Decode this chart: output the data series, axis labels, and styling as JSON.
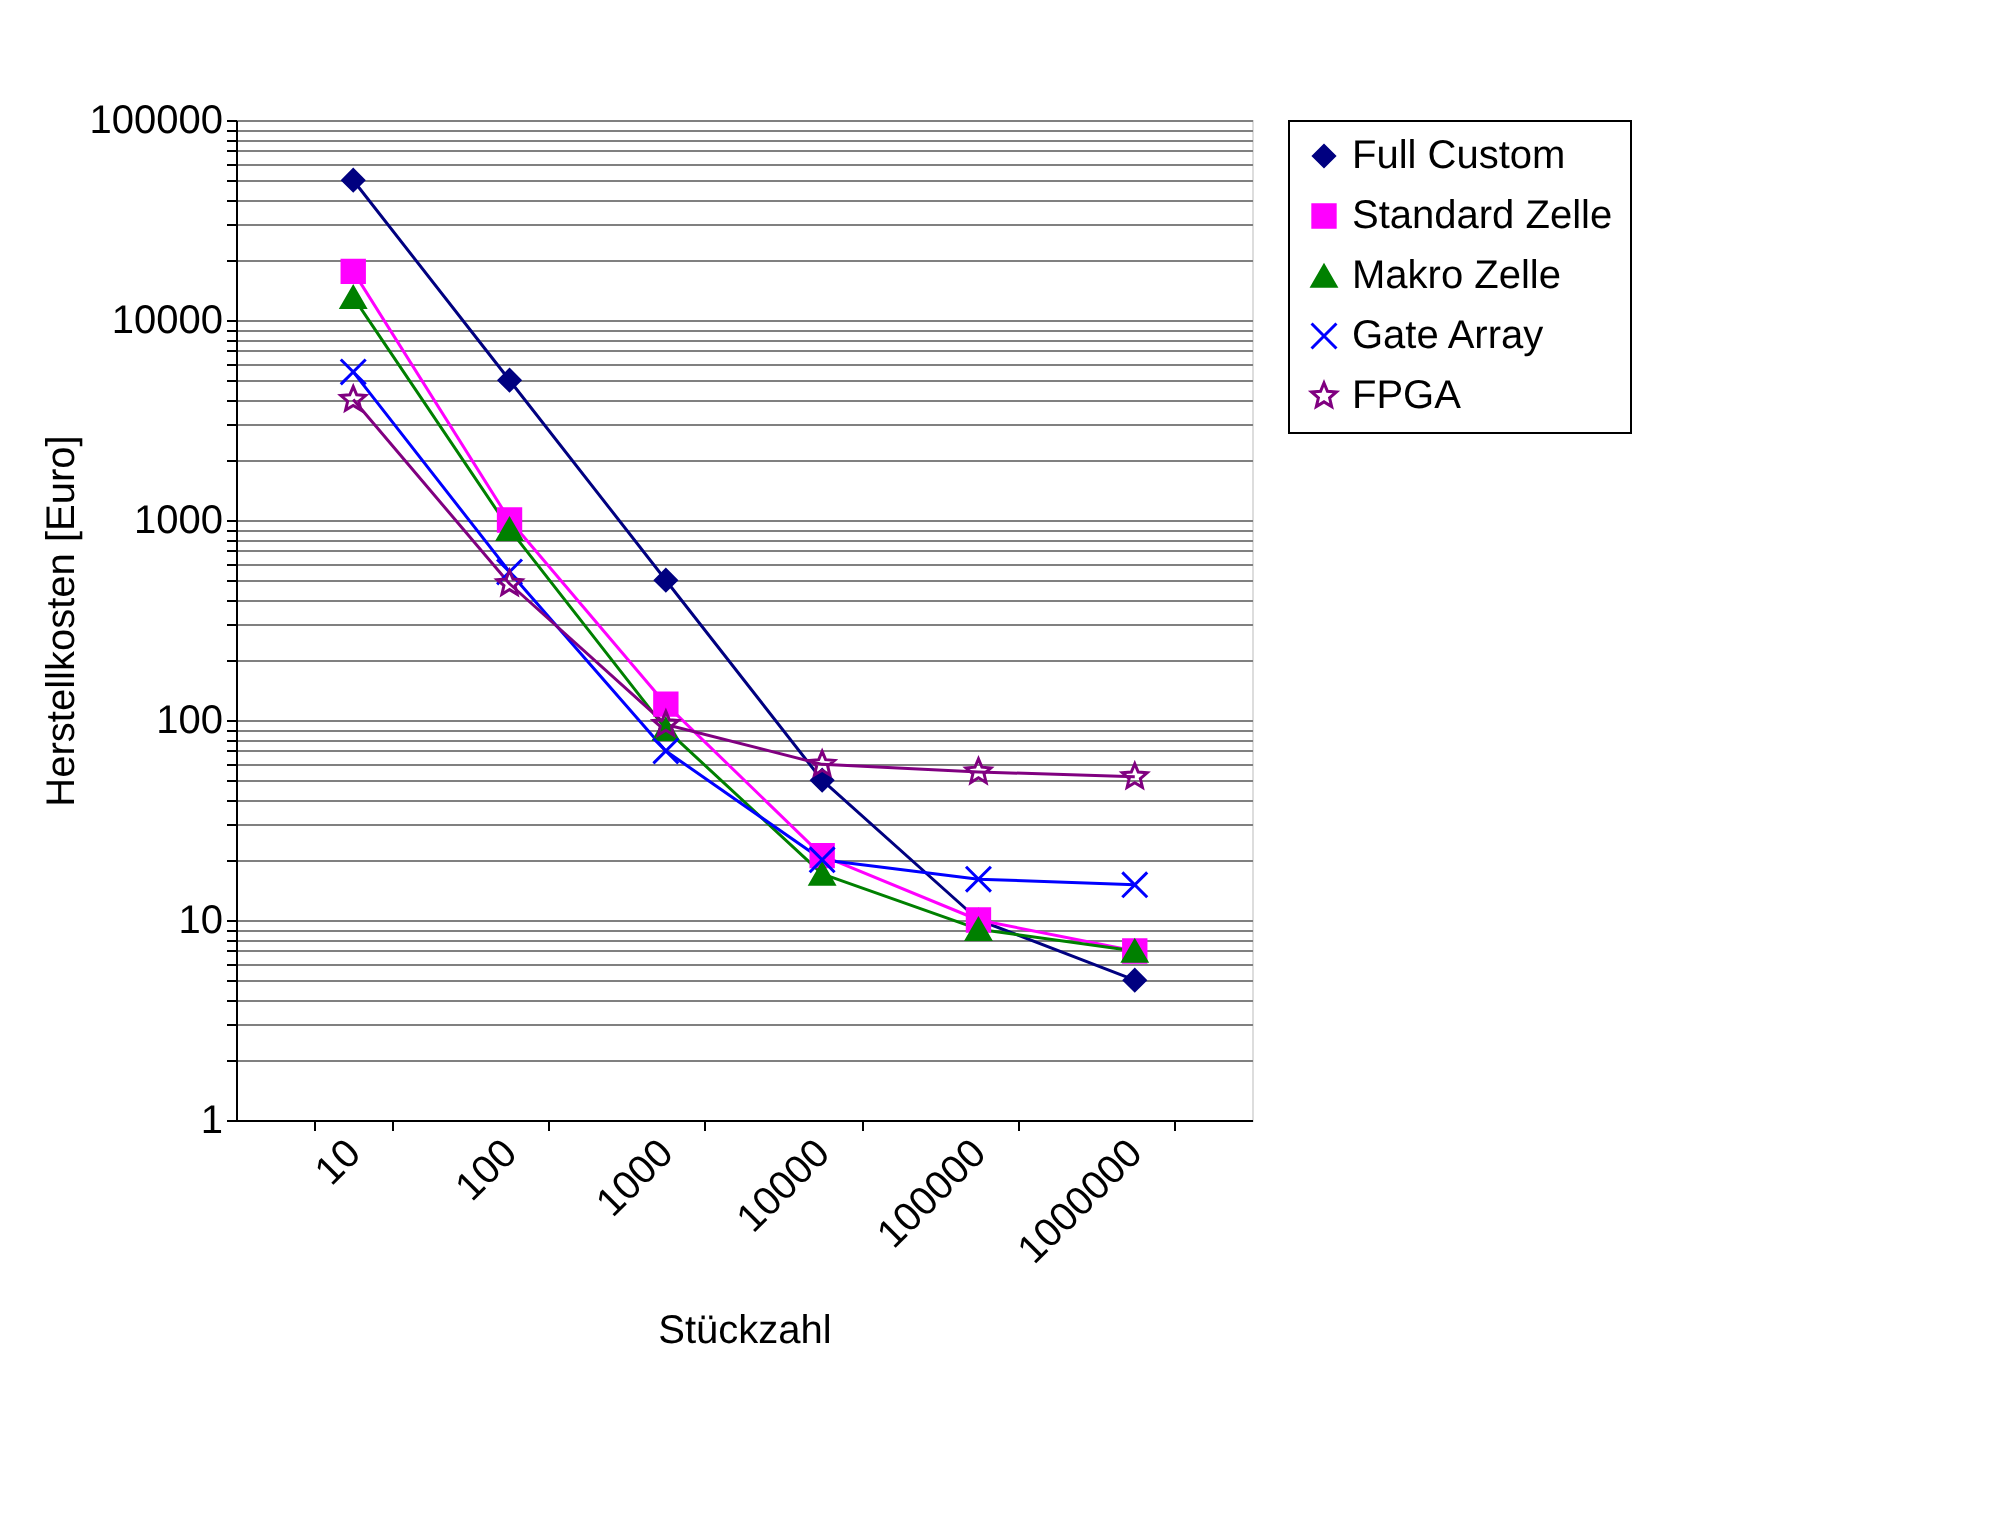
{
  "chart_data": {
    "type": "line",
    "xlabel": "Stückzahl",
    "ylabel": "Herstellkosten [Euro]",
    "categories": [
      "10",
      "100",
      "1000",
      "10000",
      "100000",
      "1000000"
    ],
    "series": [
      {
        "name": "Full Custom",
        "color": "#000080",
        "marker": "diamond",
        "values": [
          50000,
          5000,
          500,
          50,
          10,
          5
        ]
      },
      {
        "name": "Standard Zelle",
        "color": "#ff00ff",
        "marker": "square",
        "values": [
          17500,
          1000,
          120,
          21,
          10,
          7
        ]
      },
      {
        "name": "Makro Zelle",
        "color": "#008000",
        "marker": "triangle",
        "values": [
          13000,
          900,
          90,
          17,
          9,
          7
        ]
      },
      {
        "name": "Gate Array",
        "color": "#0000ff",
        "marker": "cross",
        "values": [
          5500,
          550,
          70,
          20,
          16,
          15
        ]
      },
      {
        "name": "FPGA",
        "color": "#800080",
        "marker": "star",
        "values": [
          4000,
          480,
          95,
          60,
          55,
          52
        ]
      }
    ],
    "log": "y",
    "ylim": [
      1,
      100000
    ],
    "yticks": [
      1,
      {
        "value": 2,
        "label": null
      },
      {
        "value": 3,
        "label": null
      },
      {
        "value": 4,
        "label": null
      },
      {
        "value": 5,
        "label": null
      },
      {
        "value": 6,
        "label": null
      },
      {
        "value": 7,
        "label": null
      },
      {
        "value": 8,
        "label": null
      },
      {
        "value": 9,
        "label": null
      },
      10,
      {
        "value": 20,
        "label": null
      },
      {
        "value": 30,
        "label": null
      },
      {
        "value": 40,
        "label": null
      },
      {
        "value": 50,
        "label": null
      },
      {
        "value": 60,
        "label": null
      },
      {
        "value": 70,
        "label": null
      },
      {
        "value": 80,
        "label": null
      },
      {
        "value": 90,
        "label": null
      },
      100,
      {
        "value": 200,
        "label": null
      },
      {
        "value": 300,
        "label": null
      },
      {
        "value": 400,
        "label": null
      },
      {
        "value": 500,
        "label": null
      },
      {
        "value": 600,
        "label": null
      },
      {
        "value": 700,
        "label": null
      },
      {
        "value": 800,
        "label": null
      },
      {
        "value": 900,
        "label": null
      },
      1000,
      {
        "value": 2000,
        "label": null
      },
      {
        "value": 3000,
        "label": null
      },
      {
        "value": 4000,
        "label": null
      },
      {
        "value": 5000,
        "label": null
      },
      {
        "value": 6000,
        "label": null
      },
      {
        "value": 7000,
        "label": null
      },
      {
        "value": 8000,
        "label": null
      },
      {
        "value": 9000,
        "label": null
      },
      10000,
      {
        "value": 20000,
        "label": null
      },
      {
        "value": 30000,
        "label": null
      },
      {
        "value": 40000,
        "label": null
      },
      {
        "value": 50000,
        "label": null
      },
      {
        "value": 60000,
        "label": null
      },
      {
        "value": 70000,
        "label": null
      },
      {
        "value": 80000,
        "label": null
      },
      {
        "value": 90000,
        "label": null
      },
      100000
    ],
    "grid": "y",
    "legend": "right",
    "line_style": "solid"
  }
}
